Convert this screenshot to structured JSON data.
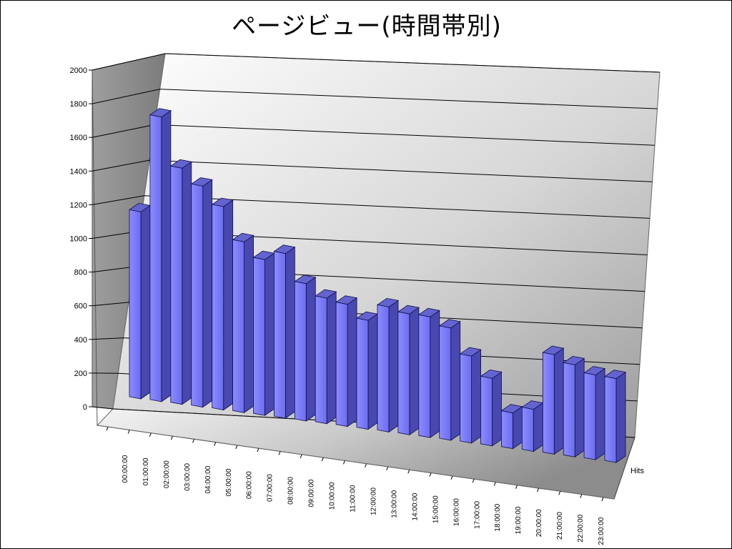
{
  "chart_data": {
    "type": "bar",
    "style": "3d-column",
    "title": "ページビュー(時間帯別)",
    "categories": [
      "00:00:00",
      "01:00:00",
      "02:00:00",
      "03:00:00",
      "04:00:00",
      "05:00:00",
      "06:00:00",
      "07:00:00",
      "08:00:00",
      "09:00:00",
      "10:00:00",
      "11:00:00",
      "12:00:00",
      "13:00:00",
      "14:00:00",
      "15:00:00",
      "16:00:00",
      "17:00:00",
      "18:00:00",
      "19:00:00",
      "20:00:00",
      "21:00:00",
      "22:00:00",
      "23:00:00"
    ],
    "series": [
      {
        "name": "Hits",
        "values": [
          1125,
          1715,
          1425,
          1335,
          1230,
          1035,
          945,
          1000,
          835,
          765,
          745,
          665,
          765,
          740,
          740,
          690,
          535,
          415,
          220,
          260,
          615,
          570,
          525,
          520
        ]
      }
    ],
    "y_ticks": [
      "0",
      "200",
      "400",
      "600",
      "800",
      "1000",
      "1200",
      "1400",
      "1600",
      "1800",
      "2000"
    ],
    "ylim": [
      0,
      2000
    ],
    "grid": true,
    "colors": {
      "bar_front": "#8080ff",
      "bar_side": "#4848b0",
      "bar_top": "#6464d0",
      "bar_edge": "#10104a"
    }
  }
}
